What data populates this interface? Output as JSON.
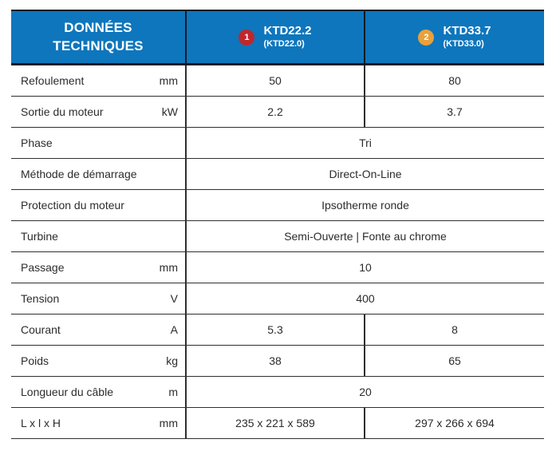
{
  "table": {
    "header": {
      "title": "DONNÉES TECHNIQUES",
      "title_lines": [
        "DONNÉES",
        "TECHNIQUES"
      ],
      "products": [
        {
          "badge_number": "1",
          "badge_color": "#c0272d",
          "name": "KTD22.2",
          "alt_name": "(KTD22.0)"
        },
        {
          "badge_number": "2",
          "badge_color": "#e9a13b",
          "name": "KTD33.7",
          "alt_name": "(KTD33.0)"
        }
      ]
    },
    "rows": [
      {
        "label": "Refoulement",
        "unit": "mm",
        "values": [
          "50",
          "80"
        ]
      },
      {
        "label": "Sortie du moteur",
        "unit": "kW",
        "values": [
          "2.2",
          "3.7"
        ]
      },
      {
        "label": "Phase",
        "unit": "",
        "value": "Tri"
      },
      {
        "label": "Méthode de démarrage",
        "unit": "",
        "value": "Direct-On-Line"
      },
      {
        "label": "Protection du moteur",
        "unit": "",
        "value": "Ipsotherme ronde"
      },
      {
        "label": "Turbine",
        "unit": "",
        "value": "Semi-Ouverte | Fonte au chrome"
      },
      {
        "label": "Passage",
        "unit": "mm",
        "value": "10"
      },
      {
        "label": "Tension",
        "unit": "V",
        "value": "400"
      },
      {
        "label": "Courant",
        "unit": "A",
        "values": [
          "5.3",
          "8"
        ]
      },
      {
        "label": "Poids",
        "unit": "kg",
        "values": [
          "38",
          "65"
        ]
      },
      {
        "label": "Longueur du câble",
        "unit": "m",
        "value": "20"
      },
      {
        "label": "L x l x H",
        "unit": "mm",
        "values": [
          "235 x 221 x 589",
          "297 x 266 x 694"
        ]
      }
    ]
  },
  "colors": {
    "header_background": "#0e76bd",
    "header_border": "#141a24",
    "row_separator": "#2f2f2f",
    "text": "#2c2c2c",
    "badge_1": "#c0272d",
    "badge_2": "#e9a13b"
  }
}
